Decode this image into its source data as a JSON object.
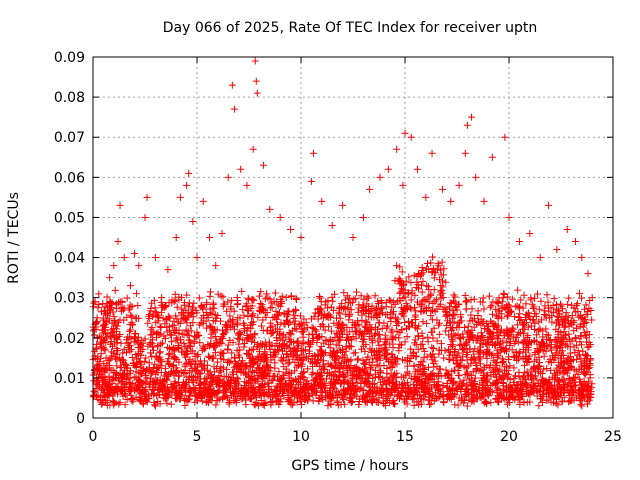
{
  "chart_data": {
    "type": "scatter",
    "title": "Day 066 of 2025, Rate Of TEC Index for receiver uptn",
    "xlabel": "GPS time / hours",
    "ylabel": "ROTI / TECUs",
    "xlim": [
      0,
      25
    ],
    "ylim": [
      0,
      0.09
    ],
    "x_ticks": [
      0,
      5,
      10,
      15,
      20,
      25
    ],
    "x_tick_labels": [
      "0",
      "5",
      "10",
      "15",
      "20",
      "25"
    ],
    "y_ticks": [
      0,
      0.01,
      0.02,
      0.03,
      0.04,
      0.05,
      0.06,
      0.07,
      0.08,
      0.09
    ],
    "y_tick_labels": [
      "0",
      "0.01",
      "0.02",
      "0.03",
      "0.04",
      "0.05",
      "0.06",
      "0.07",
      "0.08",
      "0.09"
    ],
    "grid": true,
    "marker": "+",
    "marker_color": "#ff0000",
    "series": [
      {
        "values": [
          {
            "x": 0.1,
            "y": 0.029
          },
          {
            "x": 0.2,
            "y": 0.025
          },
          {
            "x": 0.4,
            "y": 0.02
          },
          {
            "x": 0.6,
            "y": 0.026
          },
          {
            "x": 0.8,
            "y": 0.035
          },
          {
            "x": 1.0,
            "y": 0.038
          },
          {
            "x": 1.2,
            "y": 0.044
          },
          {
            "x": 1.3,
            "y": 0.053
          },
          {
            "x": 1.5,
            "y": 0.04
          },
          {
            "x": 1.8,
            "y": 0.033
          },
          {
            "x": 2.0,
            "y": 0.041
          },
          {
            "x": 2.2,
            "y": 0.038
          },
          {
            "x": 2.5,
            "y": 0.05
          },
          {
            "x": 2.6,
            "y": 0.055
          },
          {
            "x": 3.0,
            "y": 0.04
          },
          {
            "x": 3.3,
            "y": 0.03
          },
          {
            "x": 3.6,
            "y": 0.037
          },
          {
            "x": 4.0,
            "y": 0.045
          },
          {
            "x": 4.2,
            "y": 0.055
          },
          {
            "x": 4.5,
            "y": 0.058
          },
          {
            "x": 4.6,
            "y": 0.061
          },
          {
            "x": 4.8,
            "y": 0.049
          },
          {
            "x": 5.0,
            "y": 0.04
          },
          {
            "x": 5.3,
            "y": 0.054
          },
          {
            "x": 5.6,
            "y": 0.045
          },
          {
            "x": 5.9,
            "y": 0.038
          },
          {
            "x": 6.2,
            "y": 0.046
          },
          {
            "x": 6.5,
            "y": 0.06
          },
          {
            "x": 6.7,
            "y": 0.083
          },
          {
            "x": 6.8,
            "y": 0.077
          },
          {
            "x": 7.1,
            "y": 0.062
          },
          {
            "x": 7.4,
            "y": 0.058
          },
          {
            "x": 7.7,
            "y": 0.067
          },
          {
            "x": 7.8,
            "y": 0.089
          },
          {
            "x": 7.85,
            "y": 0.084
          },
          {
            "x": 7.9,
            "y": 0.081
          },
          {
            "x": 8.2,
            "y": 0.063
          },
          {
            "x": 8.5,
            "y": 0.052
          },
          {
            "x": 9.0,
            "y": 0.05
          },
          {
            "x": 9.5,
            "y": 0.047
          },
          {
            "x": 10.0,
            "y": 0.045
          },
          {
            "x": 10.5,
            "y": 0.059
          },
          {
            "x": 10.6,
            "y": 0.066
          },
          {
            "x": 11.0,
            "y": 0.054
          },
          {
            "x": 11.5,
            "y": 0.048
          },
          {
            "x": 12.0,
            "y": 0.053
          },
          {
            "x": 12.5,
            "y": 0.045
          },
          {
            "x": 13.0,
            "y": 0.05
          },
          {
            "x": 13.3,
            "y": 0.057
          },
          {
            "x": 13.8,
            "y": 0.06
          },
          {
            "x": 14.2,
            "y": 0.062
          },
          {
            "x": 14.6,
            "y": 0.067
          },
          {
            "x": 14.9,
            "y": 0.058
          },
          {
            "x": 15.0,
            "y": 0.071
          },
          {
            "x": 15.3,
            "y": 0.07
          },
          {
            "x": 15.6,
            "y": 0.062
          },
          {
            "x": 16.0,
            "y": 0.055
          },
          {
            "x": 16.3,
            "y": 0.066
          },
          {
            "x": 16.8,
            "y": 0.057
          },
          {
            "x": 17.2,
            "y": 0.054
          },
          {
            "x": 17.6,
            "y": 0.058
          },
          {
            "x": 17.9,
            "y": 0.066
          },
          {
            "x": 18.0,
            "y": 0.073
          },
          {
            "x": 18.2,
            "y": 0.075
          },
          {
            "x": 18.4,
            "y": 0.06
          },
          {
            "x": 18.8,
            "y": 0.054
          },
          {
            "x": 19.2,
            "y": 0.065
          },
          {
            "x": 19.8,
            "y": 0.07
          },
          {
            "x": 20.0,
            "y": 0.05
          },
          {
            "x": 20.5,
            "y": 0.044
          },
          {
            "x": 21.0,
            "y": 0.046
          },
          {
            "x": 21.5,
            "y": 0.04
          },
          {
            "x": 21.9,
            "y": 0.053
          },
          {
            "x": 22.3,
            "y": 0.042
          },
          {
            "x": 22.8,
            "y": 0.047
          },
          {
            "x": 23.2,
            "y": 0.044
          },
          {
            "x": 23.5,
            "y": 0.04
          },
          {
            "x": 23.8,
            "y": 0.036
          },
          {
            "x": 24.0,
            "y": 0.03
          },
          {
            "x": 1.0,
            "y": 0.004
          },
          {
            "x": 3.0,
            "y": 0.003
          },
          {
            "x": 6.0,
            "y": 0.005
          },
          {
            "x": 9.0,
            "y": 0.004
          },
          {
            "x": 12.0,
            "y": 0.005
          },
          {
            "x": 15.0,
            "y": 0.004
          },
          {
            "x": 18.0,
            "y": 0.003
          },
          {
            "x": 21.0,
            "y": 0.004
          },
          {
            "x": 23.5,
            "y": 0.003
          }
        ]
      }
    ],
    "density_band_note_excluded": true
  }
}
